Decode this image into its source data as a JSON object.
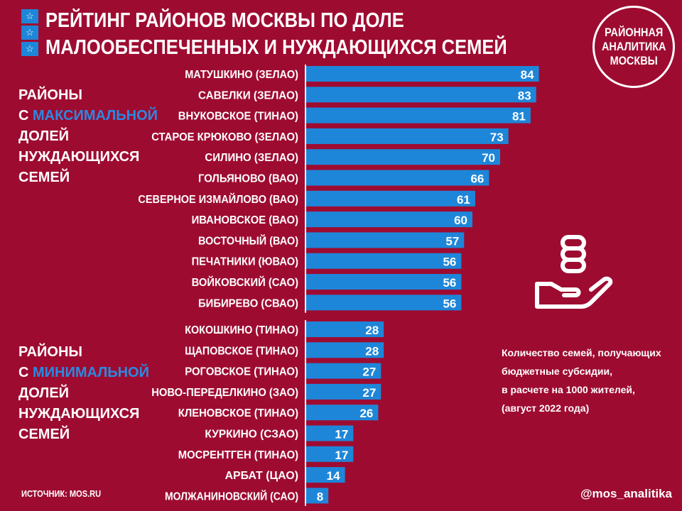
{
  "title": {
    "line1": "РЕЙТИНГ РАЙОНОВ МОСКВЫ ПО ДОЛЕ",
    "line2": "МАЛООБЕСПЕЧЕННЫХ И НУЖДАЮЩИХСЯ СЕМЕЙ"
  },
  "logo": {
    "text": "РАЙОННАЯ\nАНАЛИТИКА\nМОСКВЫ"
  },
  "side_top": {
    "l1": "РАЙОНЫ",
    "l2a": "С ",
    "l2b": "МАКСИМАЛЬНОЙ",
    "l3": "ДОЛЕЙ",
    "l4": "НУЖДАЮЩИХСЯ",
    "l5": "СЕМЕЙ"
  },
  "side_bottom": {
    "l1": "РАЙОНЫ",
    "l2a": "С ",
    "l2b": "МИНИМАЛЬНОЙ",
    "l3": "ДОЛЕЙ",
    "l4": "НУЖДАЮЩИХСЯ",
    "l5": "СЕМЕЙ"
  },
  "note": "Количество семей, получающих\nбюджетные субсидии,\nв расчете на 1000 жителей,\n(август 2022 года)",
  "source": "ИСТОЧНИК: MOS.RU",
  "handle": "@mos_analitika",
  "colors": {
    "background": "#9e0b31",
    "bar": "#1e86d8",
    "accent_text": "#2a8ae0"
  },
  "icon": "coins-in-hand-icon",
  "chart_data": [
    {
      "type": "bar",
      "orientation": "horizontal",
      "categories": [
        "МАТУШКИНО (ЗЕЛАО)",
        "САВЕЛКИ (ЗЕЛАО)",
        "ВНУКОВСКОЕ (ТИНАО)",
        "СТАРОЕ КРЮКОВО (ЗЕЛАО)",
        "СИЛИНО (ЗЕЛАО)",
        "ГОЛЬЯНОВО (ВАО)",
        "СЕВЕРНОЕ ИЗМАЙЛОВО (ВАО)",
        "ИВАНОВСКОЕ (ВАО)",
        "ВОСТОЧНЫЙ (ВАО)",
        "ПЕЧАТНИКИ (ЮВАО)",
        "ВОЙКОВСКИЙ (САО)",
        "БИБИРЕВО (СВАО)"
      ],
      "values": [
        84,
        83,
        81,
        73,
        70,
        66,
        61,
        60,
        57,
        56,
        56,
        56
      ]
    },
    {
      "type": "bar",
      "orientation": "horizontal",
      "categories": [
        "КОКОШКИНО (ТИНАО)",
        "ЩАПОВСКОЕ (ТИНАО)",
        "РОГОВСКОЕ (ТИНАО)",
        "НОВО-ПЕРЕДЕЛКИНО (ЗАО)",
        "КЛЕНОВСКОЕ (ТИНАО)",
        "КУРКИНО (СЗАО)",
        "МОСРЕНТГЕН (ТИНАО)",
        "АРБАТ (ЦАО)",
        "МОЛЖАНИНОВСКИЙ (САО)"
      ],
      "values": [
        28,
        28,
        27,
        27,
        26,
        17,
        17,
        14,
        8
      ]
    }
  ]
}
